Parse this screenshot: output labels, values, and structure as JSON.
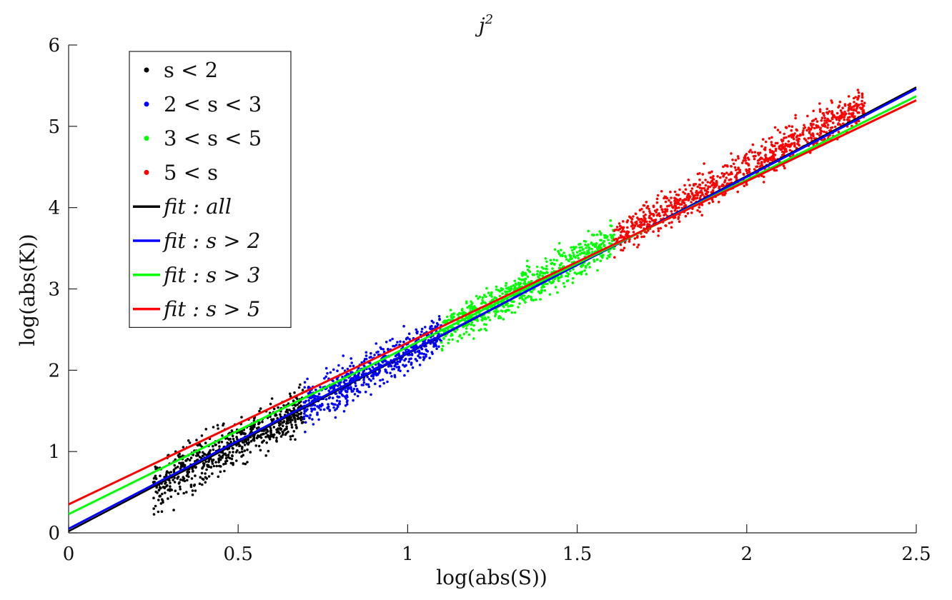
{
  "chart_data": {
    "type": "scatter",
    "title": "j²",
    "xlabel": "log(abs(S))",
    "ylabel": "log(abs(K))",
    "xlim": [
      0,
      2.5
    ],
    "ylim": [
      0,
      6
    ],
    "xticks": [
      0,
      0.5,
      1,
      1.5,
      2,
      2.5
    ],
    "xtick_labels": [
      "0",
      "0.5",
      "1",
      "1.5",
      "2",
      "2.5"
    ],
    "yticks": [
      0,
      1,
      2,
      3,
      4,
      5,
      6
    ],
    "ytick_labels": [
      "0",
      "1",
      "2",
      "3",
      "4",
      "5",
      "6"
    ],
    "grid": false,
    "legend_position": "top-left",
    "scatter_series": [
      {
        "name": "s < 2",
        "color": "#000000",
        "x_range": [
          0.25,
          0.693
        ],
        "samples": [
          [
            0.26,
            0.58
          ],
          [
            0.31,
            0.28
          ],
          [
            0.4,
            0.85
          ],
          [
            0.5,
            1.1
          ],
          [
            0.6,
            1.35
          ],
          [
            0.69,
            1.55
          ]
        ]
      },
      {
        "name": "2 < s < 3",
        "color": "#0000ff",
        "x_range": [
          0.693,
          1.099
        ],
        "samples": [
          [
            0.7,
            1.5
          ],
          [
            0.8,
            1.85
          ],
          [
            0.9,
            2.15
          ],
          [
            1.0,
            2.4
          ],
          [
            1.099,
            2.55
          ]
        ]
      },
      {
        "name": "3 < s < 5",
        "color": "#00ff00",
        "x_range": [
          1.099,
          1.609
        ],
        "samples": [
          [
            1.1,
            2.5
          ],
          [
            1.2,
            2.75
          ],
          [
            1.3,
            3.0
          ],
          [
            1.4,
            3.25
          ],
          [
            1.5,
            3.45
          ],
          [
            1.609,
            3.6
          ]
        ]
      },
      {
        "name": "5 < s",
        "color": "#ff0000",
        "x_range": [
          1.609,
          2.35
        ],
        "samples": [
          [
            1.61,
            3.55
          ],
          [
            1.8,
            4.0
          ],
          [
            2.0,
            4.45
          ],
          [
            2.2,
            4.85
          ],
          [
            2.3,
            5.05
          ]
        ]
      }
    ],
    "fit_lines": [
      {
        "name": "fit : all",
        "color": "#000000",
        "x": [
          0,
          2.5
        ],
        "y": [
          0.02,
          5.48
        ]
      },
      {
        "name": "fit : s > 2",
        "color": "#0000ff",
        "x": [
          0,
          2.5
        ],
        "y": [
          0.05,
          5.46
        ]
      },
      {
        "name": "fit : s > 3",
        "color": "#00ff00",
        "x": [
          0,
          2.5
        ],
        "y": [
          0.23,
          5.37
        ]
      },
      {
        "name": "fit : s > 5",
        "color": "#ff0000",
        "x": [
          0,
          2.5
        ],
        "y": [
          0.35,
          5.32
        ]
      }
    ]
  }
}
